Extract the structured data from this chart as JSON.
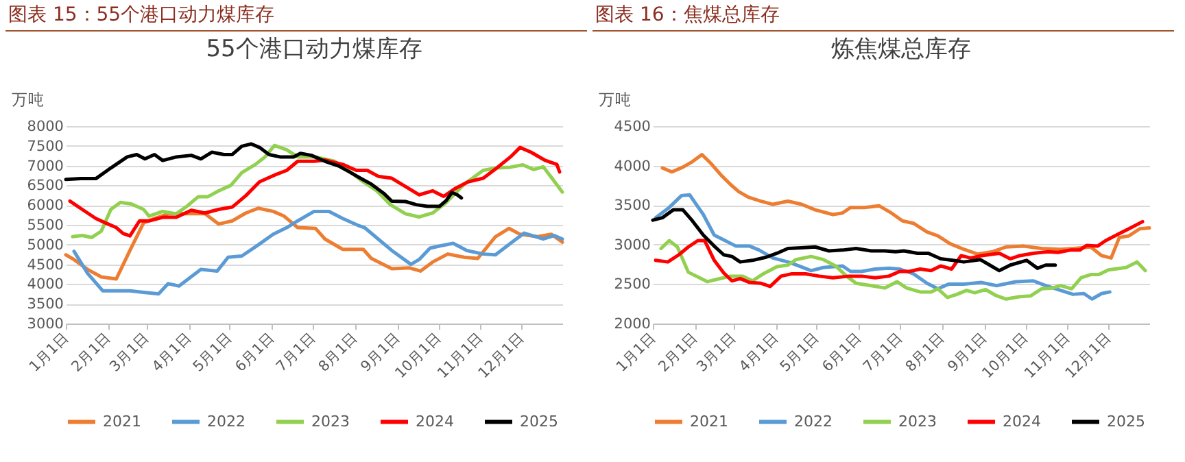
{
  "chart_data": [
    {
      "type": "line",
      "title": "图表 15：55个港口动力煤库存",
      "subtitle": "55个港口动力煤库存",
      "ylabel": "万吨",
      "xlim": [
        "--01-01",
        "--12-31"
      ],
      "ylim": [
        3000,
        8000
      ],
      "xticks": [
        {
          "value": "--01-01",
          "label": "1月1日"
        },
        {
          "value": "--02-01",
          "label": "2月1日"
        },
        {
          "value": "--03-01",
          "label": "3月1日"
        },
        {
          "value": "--04-01",
          "label": "4月1日"
        },
        {
          "value": "--05-01",
          "label": "5月1日"
        },
        {
          "value": "--06-01",
          "label": "6月1日"
        },
        {
          "value": "--07-01",
          "label": "7月1日"
        },
        {
          "value": "--08-01",
          "label": "8月1日"
        },
        {
          "value": "--09-01",
          "label": "9月1日"
        },
        {
          "value": "--10-01",
          "label": "10月1日"
        },
        {
          "value": "--11-01",
          "label": "11月1日"
        },
        {
          "value": "--12-01",
          "label": "12月1日"
        }
      ],
      "yticks": [
        3000,
        3500,
        4000,
        4500,
        5000,
        5500,
        6000,
        6500,
        7000,
        7500,
        8000
      ],
      "grid": "y",
      "legend": "bottom",
      "series": [
        {
          "name": "2021",
          "color": "#ed7d31",
          "x": [
            "--01-01",
            "--01-07",
            "--01-17",
            "--01-27",
            "--02-07",
            "--02-17",
            "--02-27",
            "--03-07",
            "--03-17",
            "--03-30",
            "--04-13",
            "--04-23",
            "--05-03",
            "--05-13",
            "--05-22",
            "--06-02",
            "--06-10",
            "--06-20",
            "--07-03",
            "--07-10",
            "--07-23",
            "--08-07",
            "--08-13",
            "--08-28",
            "--09-10",
            "--09-18",
            "--09-27",
            "--10-08",
            "--10-20",
            "--10-30",
            "--11-12",
            "--11-22",
            "--11-30",
            "--12-13",
            "--12-23",
            "--12-31"
          ],
          "values": [
            4740,
            4620,
            4370,
            4180,
            4130,
            4850,
            5550,
            5660,
            5780,
            5780,
            5780,
            5520,
            5600,
            5800,
            5920,
            5840,
            5720,
            5430,
            5410,
            5140,
            4880,
            4880,
            4650,
            4390,
            4410,
            4330,
            4560,
            4760,
            4680,
            4650,
            5200,
            5410,
            5260,
            5200,
            5260,
            5060
          ]
        },
        {
          "name": "2022",
          "color": "#5b9bd5",
          "x": [
            "--01-07",
            "--01-17",
            "--01-28",
            "--02-17",
            "--02-27",
            "--03-10",
            "--03-17",
            "--03-25",
            "--04-10",
            "--04-22",
            "--04-30",
            "--05-10",
            "--05-22",
            "--06-02",
            "--06-12",
            "--06-20",
            "--07-02",
            "--07-13",
            "--07-23",
            "--08-03",
            "--08-08",
            "--08-18",
            "--08-28",
            "--09-11",
            "--09-17",
            "--09-25",
            "--10-03",
            "--10-12",
            "--10-22",
            "--11-03",
            "--11-12",
            "--11-23",
            "--12-03",
            "--12-17",
            "--12-25",
            "--12-31"
          ],
          "values": [
            4830,
            4270,
            3830,
            3830,
            3790,
            3750,
            4010,
            3950,
            4370,
            4330,
            4680,
            4710,
            4990,
            5260,
            5430,
            5600,
            5840,
            5840,
            5660,
            5490,
            5430,
            5140,
            4850,
            4500,
            4620,
            4910,
            4970,
            5030,
            4850,
            4760,
            4740,
            5030,
            5290,
            5140,
            5230,
            5140
          ]
        },
        {
          "name": "2023",
          "color": "#92d050",
          "x": [
            "--01-06",
            "--01-13",
            "--01-20",
            "--01-27",
            "--02-03",
            "--02-10",
            "--02-18",
            "--02-27",
            "--03-03",
            "--03-13",
            "--03-23",
            "--03-30",
            "--04-08",
            "--04-15",
            "--04-23",
            "--05-02",
            "--05-10",
            "--05-20",
            "--05-27",
            "--06-03",
            "--06-12",
            "--06-20",
            "--07-03",
            "--07-17",
            "--07-27",
            "--08-07",
            "--08-17",
            "--08-27",
            "--09-07",
            "--09-17",
            "--09-27",
            "--10-07",
            "--10-20",
            "--11-03",
            "--11-13",
            "--11-23",
            "--12-02",
            "--12-10",
            "--12-17",
            "--12-23",
            "--12-31"
          ],
          "values": [
            5200,
            5230,
            5180,
            5340,
            5890,
            6070,
            6030,
            5890,
            5720,
            5840,
            5780,
            5950,
            6210,
            6210,
            6360,
            6500,
            6820,
            7030,
            7220,
            7510,
            7400,
            7220,
            7220,
            7110,
            6880,
            6590,
            6360,
            6010,
            5780,
            5700,
            5800,
            6070,
            6530,
            6880,
            6940,
            6960,
            7020,
            6900,
            6970,
            6700,
            6330
          ]
        },
        {
          "name": "2024",
          "color": "#ff0000",
          "x": [
            "--01-04",
            "--01-13",
            "--01-23",
            "--01-30",
            "--02-07",
            "--02-12",
            "--02-17",
            "--02-24",
            "--03-03",
            "--03-13",
            "--03-23",
            "--04-03",
            "--04-13",
            "--04-23",
            "--05-03",
            "--05-13",
            "--05-23",
            "--06-03",
            "--06-12",
            "--06-20",
            "--07-02",
            "--07-10",
            "--07-23",
            "--08-02",
            "--08-10",
            "--08-18",
            "--08-28",
            "--09-07",
            "--09-17",
            "--09-27",
            "--10-05",
            "--10-13",
            "--10-23",
            "--11-03",
            "--11-13",
            "--11-23",
            "--11-30",
            "--12-08",
            "--12-18",
            "--12-27",
            "--12-29"
          ],
          "values": [
            6100,
            5890,
            5660,
            5550,
            5430,
            5280,
            5220,
            5600,
            5600,
            5690,
            5690,
            5870,
            5800,
            5890,
            5950,
            6240,
            6590,
            6760,
            6880,
            7110,
            7110,
            7140,
            7030,
            6880,
            6880,
            6730,
            6680,
            6470,
            6260,
            6360,
            6220,
            6410,
            6590,
            6680,
            6940,
            7220,
            7460,
            7340,
            7140,
            7030,
            6840
          ]
        },
        {
          "name": "2025",
          "color": "#000000",
          "x": [
            "--01-01",
            "--01-12",
            "--01-23",
            "--02-03",
            "--02-15",
            "--02-22",
            "--02-28",
            "--03-07",
            "--03-13",
            "--03-23",
            "--04-03",
            "--04-10",
            "--04-18",
            "--04-27",
            "--05-03",
            "--05-10",
            "--05-17",
            "--05-23",
            "--05-30",
            "--06-07",
            "--06-17",
            "--06-22",
            "--06-30",
            "--07-10",
            "--07-20",
            "--07-28",
            "--08-05",
            "--08-13",
            "--08-22",
            "--08-28",
            "--09-07",
            "--09-15",
            "--09-23",
            "--10-02",
            "--10-07",
            "--10-11",
            "--10-15",
            "--10-18"
          ],
          "values": [
            6650,
            6670,
            6670,
            6940,
            7220,
            7280,
            7170,
            7280,
            7130,
            7220,
            7260,
            7170,
            7340,
            7280,
            7280,
            7490,
            7550,
            7460,
            7280,
            7220,
            7220,
            7310,
            7260,
            7110,
            6990,
            6840,
            6680,
            6530,
            6300,
            6100,
            6090,
            6010,
            5970,
            5970,
            6120,
            6320,
            6260,
            6180
          ]
        }
      ]
    },
    {
      "type": "line",
      "title": "图表 16：焦煤总库存",
      "subtitle": "炼焦煤总库存",
      "ylabel": "万吨",
      "xlim": [
        "--01-01",
        "--12-31"
      ],
      "ylim": [
        2000,
        4500
      ],
      "xticks": [
        {
          "value": "--01-01",
          "label": "1月1日"
        },
        {
          "value": "--02-01",
          "label": "2月1日"
        },
        {
          "value": "--03-01",
          "label": "3月1日"
        },
        {
          "value": "--04-01",
          "label": "4月1日"
        },
        {
          "value": "--05-01",
          "label": "5月1日"
        },
        {
          "value": "--06-01",
          "label": "6月1日"
        },
        {
          "value": "--07-01",
          "label": "7月1日"
        },
        {
          "value": "--08-01",
          "label": "8月1日"
        },
        {
          "value": "--09-01",
          "label": "9月1日"
        },
        {
          "value": "--10-01",
          "label": "10月1日"
        },
        {
          "value": "--11-01",
          "label": "11月1日"
        },
        {
          "value": "--12-01",
          "label": "12月1日"
        }
      ],
      "yticks": [
        2000,
        2500,
        3000,
        3500,
        4000,
        4500
      ],
      "grid": "y",
      "legend": "bottom",
      "series": [
        {
          "name": "2021",
          "color": "#ed7d31",
          "x": [
            "--01-08",
            "--01-15",
            "--01-23",
            "--01-30",
            "--02-06",
            "--02-13",
            "--02-20",
            "--02-27",
            "--03-05",
            "--03-12",
            "--03-21",
            "--03-30",
            "--04-10",
            "--04-20",
            "--04-30",
            "--05-13",
            "--05-20",
            "--05-26",
            "--06-05",
            "--06-16",
            "--06-24",
            "--07-03",
            "--07-11",
            "--07-21",
            "--07-29",
            "--08-07",
            "--08-17",
            "--08-27",
            "--09-07",
            "--09-17",
            "--09-30",
            "--10-13",
            "--10-27",
            "--11-06",
            "--11-18",
            "--11-26",
            "--12-03",
            "--12-09",
            "--12-16",
            "--12-24",
            "--12-31"
          ],
          "values": [
            3970,
            3920,
            3980,
            4050,
            4140,
            4020,
            3880,
            3760,
            3670,
            3600,
            3550,
            3510,
            3550,
            3510,
            3440,
            3380,
            3400,
            3470,
            3470,
            3490,
            3410,
            3300,
            3270,
            3160,
            3110,
            3010,
            2940,
            2880,
            2910,
            2970,
            2980,
            2950,
            2940,
            2950,
            2970,
            2860,
            2830,
            3090,
            3110,
            3200,
            3210
          ]
        },
        {
          "name": "2022",
          "color": "#5b9bd5",
          "x": [
            "--01-03",
            "--01-13",
            "--01-22",
            "--01-28",
            "--02-07",
            "--02-15",
            "--02-22",
            "--03-03",
            "--03-13",
            "--03-20",
            "--03-30",
            "--04-10",
            "--04-18",
            "--04-27",
            "--05-06",
            "--05-20",
            "--05-26",
            "--06-03",
            "--06-13",
            "--06-23",
            "--07-01",
            "--07-11",
            "--07-21",
            "--07-29",
            "--08-06",
            "--08-17",
            "--08-30",
            "--09-10",
            "--09-24",
            "--10-07",
            "--10-16",
            "--10-27",
            "--11-05",
            "--11-13",
            "--11-19",
            "--11-26",
            "--12-02"
          ],
          "values": [
            3340,
            3470,
            3620,
            3630,
            3380,
            3120,
            3060,
            2980,
            2980,
            2930,
            2830,
            2780,
            2730,
            2670,
            2710,
            2730,
            2660,
            2660,
            2690,
            2700,
            2690,
            2630,
            2510,
            2440,
            2500,
            2500,
            2520,
            2480,
            2530,
            2540,
            2480,
            2420,
            2370,
            2380,
            2310,
            2380,
            2400
          ]
        },
        {
          "name": "2023",
          "color": "#92d050",
          "x": [
            "--01-07",
            "--01-13",
            "--01-19",
            "--01-27",
            "--02-03",
            "--02-10",
            "--02-17",
            "--02-27",
            "--03-08",
            "--03-15",
            "--03-23",
            "--04-02",
            "--04-10",
            "--04-16",
            "--04-27",
            "--05-06",
            "--05-15",
            "--05-23",
            "--05-30",
            "--06-10",
            "--06-20",
            "--06-29",
            "--07-06",
            "--07-16",
            "--07-24",
            "--07-29",
            "--08-05",
            "--08-12",
            "--08-19",
            "--08-25",
            "--09-02",
            "--09-09",
            "--09-17",
            "--09-27",
            "--10-05",
            "--10-13",
            "--10-21",
            "--10-27",
            "--11-04",
            "--11-11",
            "--11-18",
            "--11-24",
            "--12-01",
            "--12-14",
            "--12-22",
            "--12-28"
          ],
          "values": [
            2950,
            3050,
            2970,
            2650,
            2590,
            2530,
            2560,
            2600,
            2600,
            2540,
            2630,
            2720,
            2740,
            2810,
            2850,
            2810,
            2730,
            2600,
            2510,
            2480,
            2450,
            2530,
            2450,
            2400,
            2400,
            2440,
            2330,
            2370,
            2420,
            2390,
            2430,
            2360,
            2310,
            2340,
            2350,
            2440,
            2450,
            2480,
            2440,
            2580,
            2620,
            2620,
            2680,
            2710,
            2780,
            2670
          ]
        },
        {
          "name": "2024",
          "color": "#ff0000",
          "x": [
            "--01-03",
            "--01-12",
            "--01-20",
            "--01-27",
            "--02-03",
            "--02-08",
            "--02-15",
            "--02-22",
            "--02-28",
            "--03-06",
            "--03-13",
            "--03-21",
            "--03-28",
            "--04-05",
            "--04-13",
            "--04-23",
            "--05-03",
            "--05-13",
            "--05-25",
            "--06-03",
            "--06-13",
            "--06-23",
            "--07-01",
            "--07-08",
            "--07-16",
            "--07-24",
            "--07-31",
            "--08-08",
            "--08-15",
            "--08-22",
            "--08-30",
            "--09-12",
            "--09-20",
            "--09-27",
            "--10-07",
            "--10-18",
            "--10-25",
            "--11-03",
            "--11-10",
            "--11-15",
            "--11-23",
            "--11-29",
            "--12-08",
            "--12-16",
            "--12-26"
          ],
          "values": [
            2800,
            2780,
            2870,
            2970,
            3050,
            3050,
            2800,
            2640,
            2540,
            2570,
            2520,
            2510,
            2470,
            2600,
            2630,
            2630,
            2600,
            2580,
            2600,
            2600,
            2580,
            2600,
            2660,
            2660,
            2690,
            2670,
            2730,
            2690,
            2860,
            2830,
            2860,
            2890,
            2820,
            2860,
            2890,
            2910,
            2900,
            2930,
            2930,
            2990,
            2980,
            3050,
            3130,
            3200,
            3290
          ]
        },
        {
          "name": "2025",
          "color": "#000000",
          "x": [
            "--01-01",
            "--01-08",
            "--01-16",
            "--01-23",
            "--01-30",
            "--02-07",
            "--02-15",
            "--02-22",
            "--02-28",
            "--03-06",
            "--03-15",
            "--03-25",
            "--04-02",
            "--04-10",
            "--04-20",
            "--04-30",
            "--05-10",
            "--05-20",
            "--05-30",
            "--06-10",
            "--06-20",
            "--06-28",
            "--07-04",
            "--07-14",
            "--07-22",
            "--07-31",
            "--08-09",
            "--08-17",
            "--08-29",
            "--09-05",
            "--09-12",
            "--09-20",
            "--10-02",
            "--10-10",
            "--10-16",
            "--10-23"
          ],
          "values": [
            3310,
            3340,
            3440,
            3440,
            3300,
            3120,
            2980,
            2870,
            2850,
            2780,
            2800,
            2840,
            2890,
            2950,
            2960,
            2970,
            2920,
            2930,
            2950,
            2920,
            2920,
            2910,
            2920,
            2890,
            2890,
            2820,
            2800,
            2780,
            2810,
            2740,
            2670,
            2740,
            2800,
            2700,
            2740,
            2740
          ]
        }
      ]
    }
  ]
}
